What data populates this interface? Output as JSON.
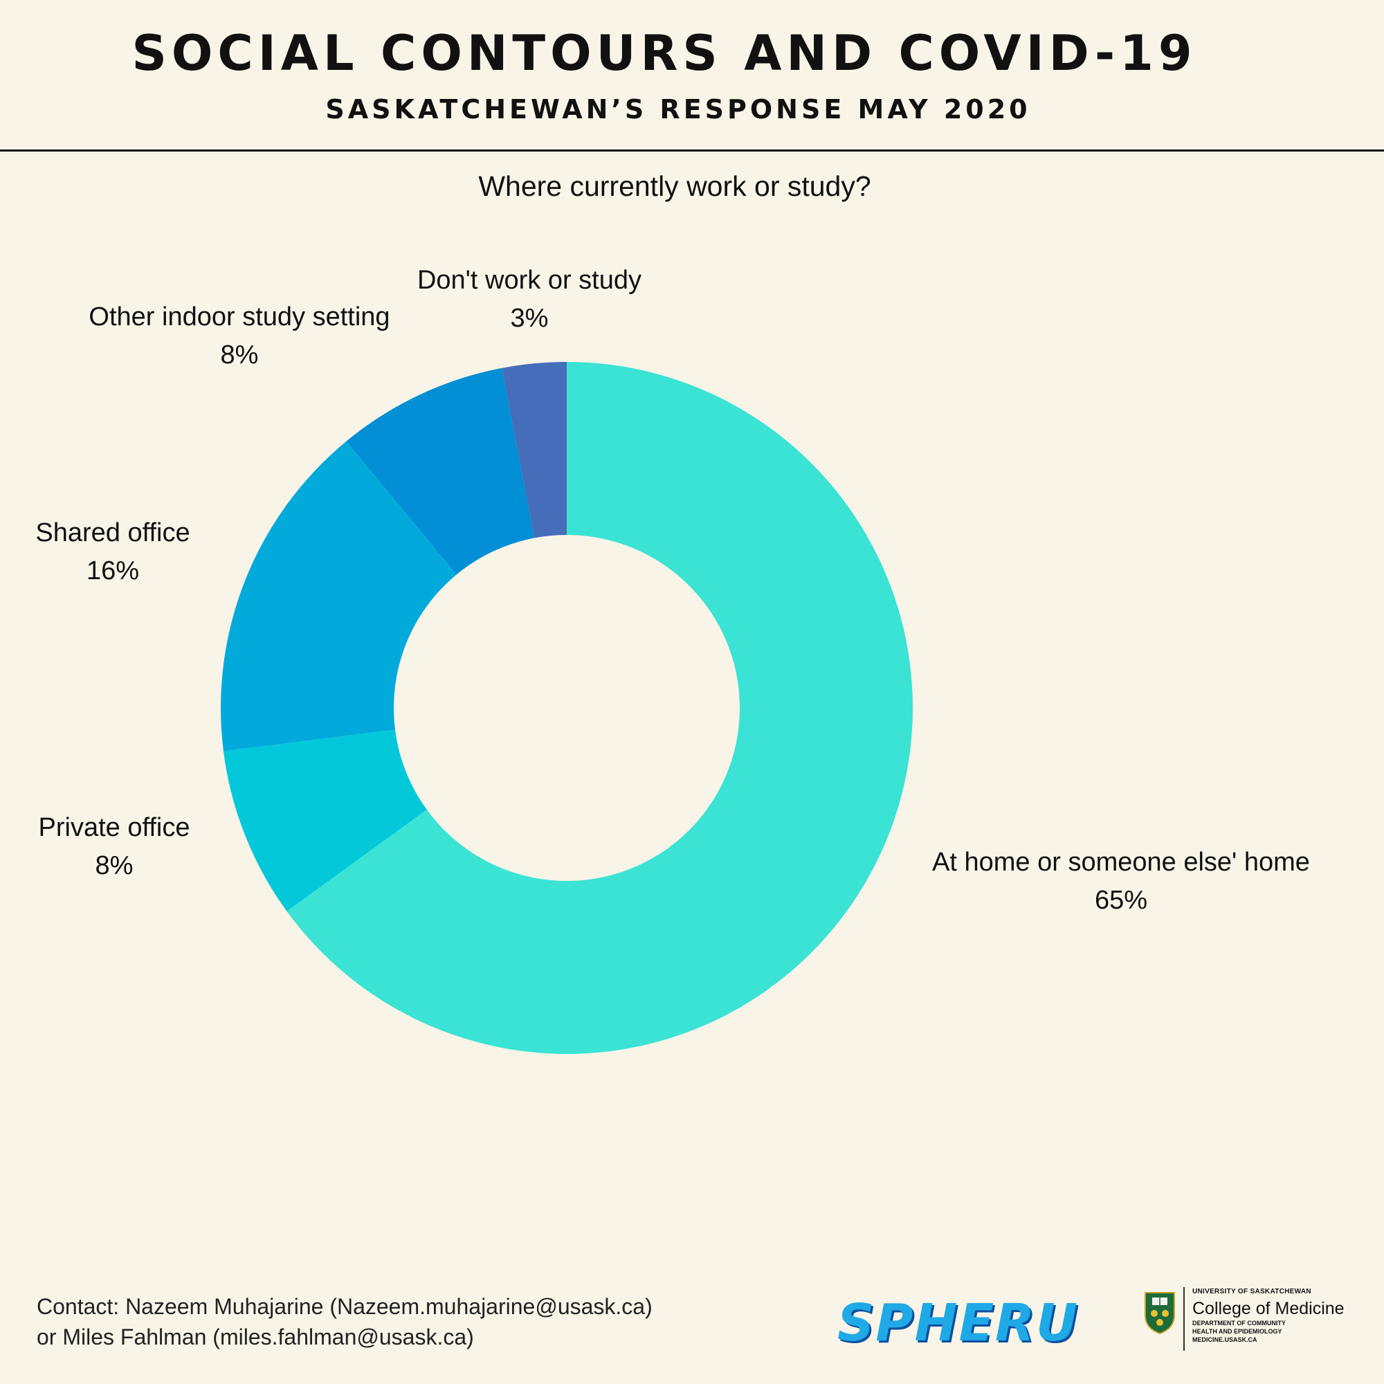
{
  "header": {
    "title": "SOCIAL CONTOURS AND COVID-19",
    "subtitle": "SASKATCHEWAN’S RESPONSE MAY 2020"
  },
  "chart_data": {
    "type": "pie",
    "variant": "donut",
    "title": "Where currently work or study?",
    "slices": [
      {
        "label": "At home or someone else' home",
        "value": 65,
        "value_label": "65%",
        "color": "#3ae3d4"
      },
      {
        "label": "Private office",
        "value": 8,
        "value_label": "8%",
        "color": "#02c8da"
      },
      {
        "label": "Shared office",
        "value": 16,
        "value_label": "16%",
        "color": "#02aadc"
      },
      {
        "label": "Other indoor study setting",
        "value": 8,
        "value_label": "8%",
        "color": "#028fd6"
      },
      {
        "label": "Don't work or study",
        "value": 3,
        "value_label": "3%",
        "color": "#456db9"
      }
    ]
  },
  "footer": {
    "contact_line1": "Contact: Nazeem Muhajarine (Nazeem.muhajarine@usask.ca)",
    "contact_line2": "or Miles Fahlman (miles.fahlman@usask.ca)"
  },
  "logos": {
    "spheru": "SPHERU",
    "university": "UNIVERSITY OF SASKATCHEWAN",
    "college": "College of Medicine",
    "dept_line1": "DEPARTMENT OF COMMUNITY",
    "dept_line2": "HEALTH AND EPIDEMIOLOGY",
    "website": "MEDICINE.USASK.CA"
  }
}
